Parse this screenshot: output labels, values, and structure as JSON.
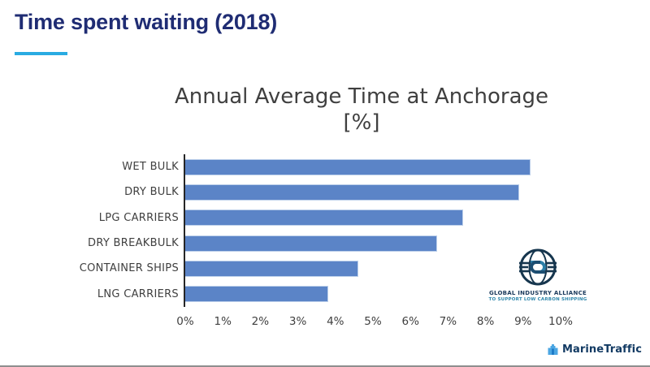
{
  "slide": {
    "title": "Time spent waiting (2018)",
    "title_color": "#1F2C73",
    "accent_color": "#29ABE2"
  },
  "chart_data": {
    "type": "bar",
    "orientation": "horizontal",
    "title": "Annual Average Time at Anchorage",
    "title_line2": "[%]",
    "categories": [
      "WET BULK",
      "DRY BULK",
      "LPG CARRIERS",
      "DRY BREAKBULK",
      "CONTAINER SHIPS",
      "LNG CARRIERS"
    ],
    "values": [
      9.2,
      8.9,
      7.4,
      6.7,
      4.6,
      3.8
    ],
    "unit": "%",
    "xlim": [
      0,
      10
    ],
    "x_ticks": [
      "0%",
      "1%",
      "2%",
      "3%",
      "4%",
      "5%",
      "6%",
      "7%",
      "8%",
      "9%",
      "10%"
    ],
    "bar_color": "#5B84C7",
    "bar_border_color": "#BCCFEA",
    "axis_line_color": "#262626",
    "text_color": "#404040",
    "grid": false,
    "legend": false
  },
  "gia_logo": {
    "line1": "GLOBAL INDUSTRY ALLIANCE",
    "line2": "TO SUPPORT LOW CARBON SHIPPING",
    "line1_color": "#1B3A5C",
    "line2_color": "#2E86AB"
  },
  "footer": {
    "brand": "MarineTraffic",
    "brand_color": "#123A63",
    "icon_color": "#4BA6E3"
  }
}
